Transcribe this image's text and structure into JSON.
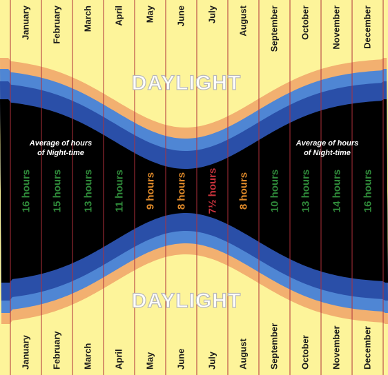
{
  "months": [
    "January",
    "February",
    "March",
    "April",
    "May",
    "June",
    "July",
    "August",
    "September",
    "October",
    "November",
    "December"
  ],
  "daylight_label": "DAYLIGHT",
  "average_label_line1": "Average of hours",
  "average_label_line2": "of Night-time",
  "night_hours": [
    {
      "month": "January",
      "label": "16 hours",
      "hours": 16
    },
    {
      "month": "February",
      "label": "15 hours",
      "hours": 15
    },
    {
      "month": "March",
      "label": "13 hours",
      "hours": 13
    },
    {
      "month": "April",
      "label": "11 hours",
      "hours": 11
    },
    {
      "month": "May",
      "label": "9 hours",
      "hours": 9
    },
    {
      "month": "June",
      "label": "8 hours",
      "hours": 8
    },
    {
      "month": "July",
      "label": "7½ hours",
      "hours": 7.5
    },
    {
      "month": "August",
      "label": "8 hours",
      "hours": 8
    },
    {
      "month": "September",
      "label": "10 hours",
      "hours": 10
    },
    {
      "month": "October",
      "label": "13 hours",
      "hours": 13
    },
    {
      "month": "November",
      "label": "14 hours",
      "hours": 14
    },
    {
      "month": "December",
      "label": "16 hours",
      "hours": 16
    }
  ],
  "colors": {
    "daylight": "#fdf49a",
    "twilight_orange": "#f2b070",
    "twilight_light_blue": "#4f86d4",
    "twilight_dark_blue": "#2a4fa8",
    "night": "#000000",
    "divider": "#b0303a",
    "hours_green": "#2f8a3a",
    "hours_orange": "#e08a2a",
    "hours_red": "#c8323c"
  }
}
